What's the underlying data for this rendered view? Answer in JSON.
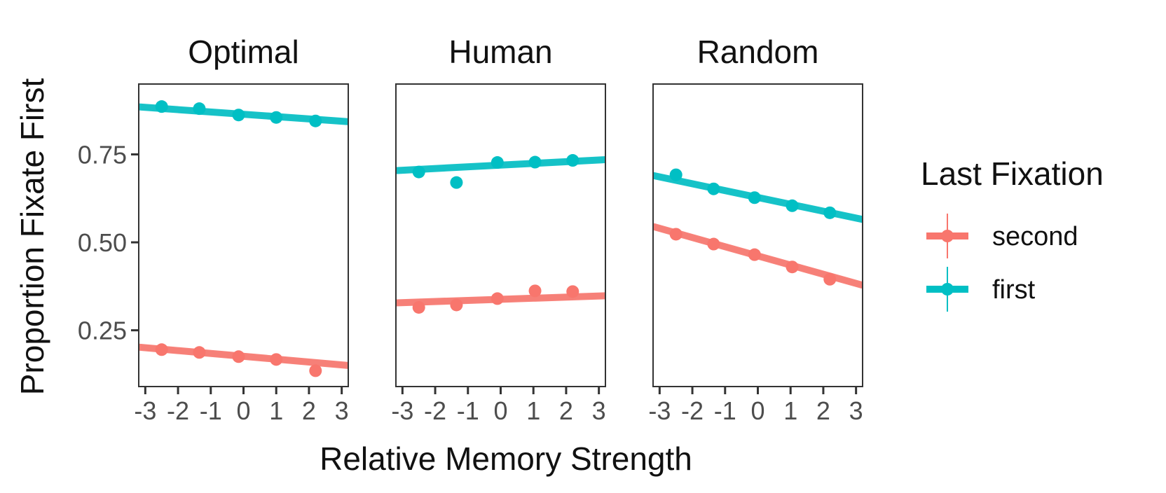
{
  "chart_data": {
    "type": "scatter",
    "xlabel": "Relative Memory Strength",
    "ylabel": "Proportion Fixate First",
    "xlim": [
      -3.2,
      3.2
    ],
    "ylim": [
      0.09,
      0.95
    ],
    "x_ticks": [
      -3,
      -2,
      -1,
      0,
      1,
      2,
      3
    ],
    "x_tick_labels": [
      "-3",
      "-2",
      "-1",
      "0",
      "1",
      "2",
      "3"
    ],
    "y_ticks": [
      0.25,
      0.5,
      0.75
    ],
    "y_tick_labels": [
      "0.25",
      "0.50",
      "0.75"
    ],
    "grid": false,
    "legend": {
      "title": "Last Fixation",
      "position": "right",
      "entries": [
        {
          "label": "second",
          "color": "#F8766D"
        },
        {
          "label": "first",
          "color": "#00BFC4"
        }
      ]
    },
    "panels": [
      {
        "title": "Optimal",
        "series": [
          {
            "name": "second",
            "color": "#F8766D",
            "points": [
              {
                "x": -2.5,
                "y": 0.195
              },
              {
                "x": -1.35,
                "y": 0.187
              },
              {
                "x": -0.15,
                "y": 0.175
              },
              {
                "x": 1.0,
                "y": 0.167
              },
              {
                "x": 2.2,
                "y": 0.135
              }
            ],
            "fit": {
              "x": [
                -3.2,
                3.2
              ],
              "y": [
                0.202,
                0.15
              ]
            }
          },
          {
            "name": "first",
            "color": "#00BFC4",
            "points": [
              {
                "x": -2.5,
                "y": 0.886
              },
              {
                "x": -1.35,
                "y": 0.88
              },
              {
                "x": -0.15,
                "y": 0.862
              },
              {
                "x": 1.0,
                "y": 0.855
              },
              {
                "x": 2.2,
                "y": 0.845
              }
            ],
            "fit": {
              "x": [
                -3.2,
                3.2
              ],
              "y": [
                0.885,
                0.843
              ]
            }
          }
        ]
      },
      {
        "title": "Human",
        "series": [
          {
            "name": "second",
            "color": "#F8766D",
            "points": [
              {
                "x": -2.5,
                "y": 0.315
              },
              {
                "x": -1.35,
                "y": 0.322
              },
              {
                "x": -0.1,
                "y": 0.34
              },
              {
                "x": 1.05,
                "y": 0.362
              },
              {
                "x": 2.2,
                "y": 0.36
              }
            ],
            "fit": {
              "x": [
                -3.2,
                3.2
              ],
              "y": [
                0.328,
                0.348
              ]
            }
          },
          {
            "name": "first",
            "color": "#00BFC4",
            "points": [
              {
                "x": -2.5,
                "y": 0.7
              },
              {
                "x": -1.35,
                "y": 0.67
              },
              {
                "x": -0.1,
                "y": 0.727
              },
              {
                "x": 1.05,
                "y": 0.728
              },
              {
                "x": 2.2,
                "y": 0.733
              }
            ],
            "fit": {
              "x": [
                -3.2,
                3.2
              ],
              "y": [
                0.704,
                0.735
              ]
            }
          }
        ]
      },
      {
        "title": "Random",
        "series": [
          {
            "name": "second",
            "color": "#F8766D",
            "points": [
              {
                "x": -2.5,
                "y": 0.523
              },
              {
                "x": -1.35,
                "y": 0.495
              },
              {
                "x": -0.1,
                "y": 0.465
              },
              {
                "x": 1.05,
                "y": 0.43
              },
              {
                "x": 2.2,
                "y": 0.395
              }
            ],
            "fit": {
              "x": [
                -3.2,
                3.2
              ],
              "y": [
                0.545,
                0.378
              ]
            }
          },
          {
            "name": "first",
            "color": "#00BFC4",
            "points": [
              {
                "x": -2.5,
                "y": 0.692
              },
              {
                "x": -1.35,
                "y": 0.652
              },
              {
                "x": -0.1,
                "y": 0.627
              },
              {
                "x": 1.05,
                "y": 0.604
              },
              {
                "x": 2.2,
                "y": 0.584
              }
            ],
            "fit": {
              "x": [
                -3.2,
                3.2
              ],
              "y": [
                0.69,
                0.565
              ]
            }
          }
        ]
      }
    ]
  }
}
